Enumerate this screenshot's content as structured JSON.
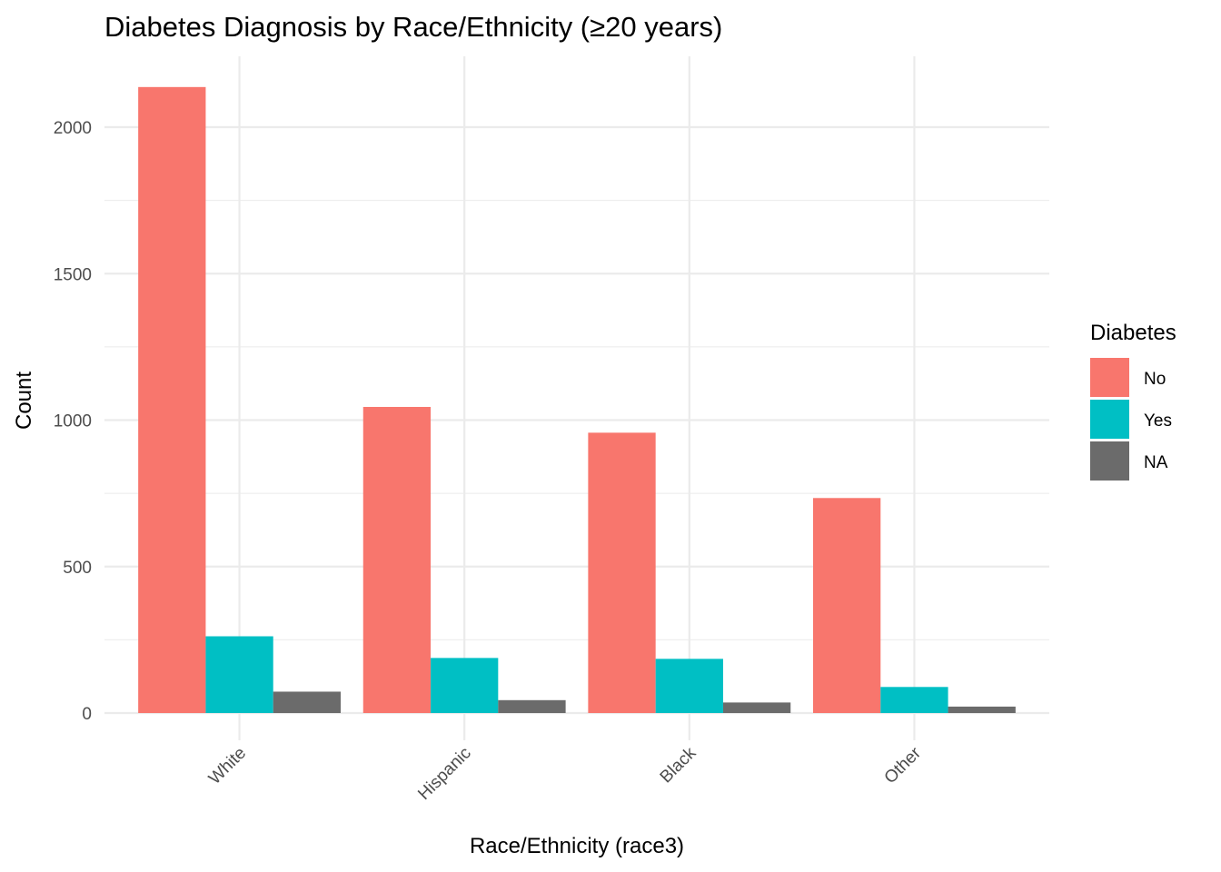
{
  "chart_data": {
    "type": "bar",
    "title": "Diabetes Diagnosis by Race/Ethnicity (≥20 years)",
    "xlabel": "Race/Ethnicity (race3)",
    "ylabel": "Count",
    "categories": [
      "White",
      "Hispanic",
      "Black",
      "Other"
    ],
    "series": [
      {
        "name": "No",
        "color": "#F8766D",
        "values": [
          2137,
          1045,
          957,
          734
        ]
      },
      {
        "name": "Yes",
        "color": "#00BFC4",
        "values": [
          262,
          188,
          185,
          89
        ]
      },
      {
        "name": "NA",
        "color": "#6B6B6B",
        "values": [
          73,
          44,
          36,
          22
        ]
      }
    ],
    "ylim": [
      0,
      2150
    ],
    "y_ticks": [
      0,
      500,
      1000,
      1500,
      2000
    ],
    "y_minor_ticks": [
      250,
      750,
      1250,
      1750
    ],
    "grid": true,
    "legend": {
      "title": "Diabetes",
      "position": "right"
    },
    "x_tick_rotation_deg": 45
  }
}
